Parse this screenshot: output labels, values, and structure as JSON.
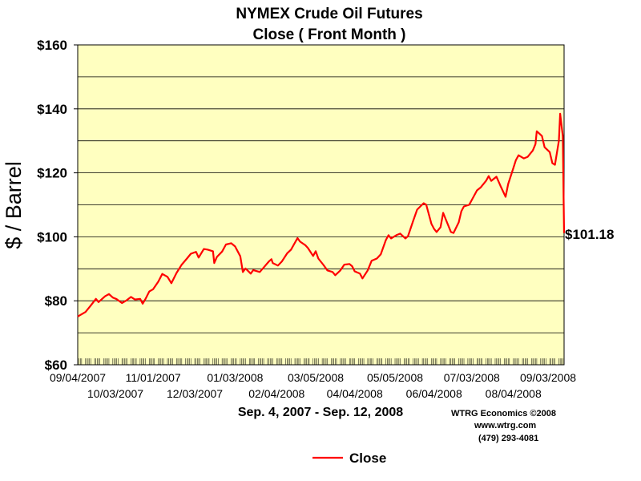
{
  "chart_data": {
    "type": "line",
    "title": "NYMEX Crude Oil Futures",
    "subtitle": "Close ( Front Month )",
    "ylabel": "$ / Barrel",
    "xlabel": "",
    "ylim": [
      60,
      160
    ],
    "ytick_labels": [
      "$60",
      "$80",
      "$100",
      "$120",
      "$140",
      "$160"
    ],
    "xtick_labels_upper": [
      "09/04/2007",
      "11/01/2007",
      "01/03/2008",
      "03/05/2008",
      "05/05/2008",
      "07/03/2008",
      "09/03/2008"
    ],
    "xtick_labels_lower": [
      "10/03/2007",
      "12/03/2007",
      "02/04/2008",
      "04/04/2008",
      "06/04/2008",
      "08/04/2008"
    ],
    "x_range": [
      "2007-09-04",
      "2008-09-12"
    ],
    "grid": "horizontal",
    "plot_background": "#ffffc0",
    "legend_position": "bottom",
    "end_value_label": "$101.18",
    "date_range_label": "Sep. 4, 2007 - Sep. 12, 2008",
    "series": [
      {
        "name": "Close",
        "color": "#ff0000",
        "points": [
          [
            "2007-09-04",
            75.1
          ],
          [
            "2007-09-10",
            76.5
          ],
          [
            "2007-09-14",
            78.5
          ],
          [
            "2007-09-18",
            80.6
          ],
          [
            "2007-09-20",
            79.6
          ],
          [
            "2007-09-25",
            81.4
          ],
          [
            "2007-09-28",
            82.1
          ],
          [
            "2007-10-01",
            81.0
          ],
          [
            "2007-10-04",
            80.5
          ],
          [
            "2007-10-08",
            79.3
          ],
          [
            "2007-10-11",
            80.0
          ],
          [
            "2007-10-15",
            81.2
          ],
          [
            "2007-10-18",
            80.4
          ],
          [
            "2007-10-22",
            80.6
          ],
          [
            "2007-10-24",
            79.1
          ],
          [
            "2007-10-26",
            80.5
          ],
          [
            "2007-10-29",
            82.9
          ],
          [
            "2007-11-01",
            83.6
          ],
          [
            "2007-11-05",
            86.0
          ],
          [
            "2007-11-08",
            88.4
          ],
          [
            "2007-11-12",
            87.5
          ],
          [
            "2007-11-15",
            85.5
          ],
          [
            "2007-11-19",
            88.7
          ],
          [
            "2007-11-23",
            91.3
          ],
          [
            "2007-11-27",
            93.2
          ],
          [
            "2007-11-30",
            94.7
          ],
          [
            "2007-12-04",
            95.3
          ],
          [
            "2007-12-06",
            93.5
          ],
          [
            "2007-12-10",
            96.2
          ],
          [
            "2007-12-13",
            96.0
          ],
          [
            "2007-12-17",
            95.5
          ],
          [
            "2007-12-18",
            91.8
          ],
          [
            "2007-12-20",
            93.7
          ],
          [
            "2007-12-24",
            95.4
          ],
          [
            "2007-12-27",
            97.6
          ],
          [
            "2007-12-31",
            98.0
          ],
          [
            "2008-01-03",
            97.0
          ],
          [
            "2008-01-07",
            93.9
          ],
          [
            "2008-01-09",
            89.0
          ],
          [
            "2008-01-11",
            90.1
          ],
          [
            "2008-01-15",
            88.5
          ],
          [
            "2008-01-17",
            89.6
          ],
          [
            "2008-01-22",
            89.0
          ],
          [
            "2008-01-25",
            90.4
          ],
          [
            "2008-01-29",
            92.3
          ],
          [
            "2008-01-31",
            93.0
          ],
          [
            "2008-02-01",
            91.8
          ],
          [
            "2008-02-05",
            91.0
          ],
          [
            "2008-02-08",
            92.3
          ],
          [
            "2008-02-12",
            94.8
          ],
          [
            "2008-02-15",
            96.0
          ],
          [
            "2008-02-20",
            99.6
          ],
          [
            "2008-02-22",
            98.5
          ],
          [
            "2008-02-26",
            97.4
          ],
          [
            "2008-02-28",
            96.5
          ],
          [
            "2008-03-03",
            94.0
          ],
          [
            "2008-03-05",
            95.5
          ],
          [
            "2008-03-07",
            93.2
          ],
          [
            "2008-03-11",
            91.2
          ],
          [
            "2008-03-14",
            89.5
          ],
          [
            "2008-03-18",
            89.0
          ],
          [
            "2008-03-20",
            88.0
          ],
          [
            "2008-03-24",
            89.5
          ],
          [
            "2008-03-27",
            91.3
          ],
          [
            "2008-03-31",
            91.5
          ],
          [
            "2008-04-02",
            90.8
          ],
          [
            "2008-04-04",
            89.2
          ],
          [
            "2008-04-08",
            88.5
          ],
          [
            "2008-04-10",
            87.0
          ],
          [
            "2008-04-14",
            89.5
          ],
          [
            "2008-04-17",
            92.5
          ],
          [
            "2008-04-21",
            93.2
          ],
          [
            "2008-04-24",
            94.5
          ],
          [
            "2008-04-28",
            99.0
          ],
          [
            "2008-04-30",
            100.5
          ],
          [
            "2008-05-02",
            99.5
          ],
          [
            "2008-05-06",
            100.5
          ],
          [
            "2008-05-09",
            101.0
          ],
          [
            "2008-05-13",
            99.5
          ],
          [
            "2008-05-15",
            100.2
          ],
          [
            "2008-05-19",
            105.0
          ],
          [
            "2008-05-22",
            108.5
          ],
          [
            "2008-05-27",
            110.5
          ],
          [
            "2008-05-29",
            110.0
          ],
          [
            "2008-06-02",
            104.0
          ],
          [
            "2008-06-04",
            102.5
          ],
          [
            "2008-06-06",
            101.5
          ],
          [
            "2008-06-09",
            103.0
          ],
          [
            "2008-06-11",
            107.5
          ],
          [
            "2008-06-13",
            105.5
          ],
          [
            "2008-06-17",
            101.5
          ],
          [
            "2008-06-19",
            101.2
          ],
          [
            "2008-06-23",
            104.5
          ],
          [
            "2008-06-25",
            108.0
          ],
          [
            "2008-06-27",
            109.5
          ],
          [
            "2008-07-01",
            110.0
          ],
          [
            "2008-07-03",
            111.5
          ],
          [
            "2008-07-07",
            114.5
          ],
          [
            "2008-07-10",
            115.5
          ],
          [
            "2008-07-14",
            117.5
          ],
          [
            "2008-07-16",
            119.0
          ],
          [
            "2008-07-18",
            117.5
          ],
          [
            "2008-07-22",
            118.8
          ],
          [
            "2008-07-25",
            116.0
          ],
          [
            "2008-07-29",
            112.5
          ],
          [
            "2008-07-31",
            116.5
          ],
          [
            "2008-08-04",
            121.5
          ],
          [
            "2008-08-06",
            124.0
          ],
          [
            "2008-08-08",
            125.5
          ],
          [
            "2008-08-12",
            124.5
          ],
          [
            "2008-08-15",
            125.0
          ],
          [
            "2008-08-19",
            127.0
          ],
          [
            "2008-08-21",
            129.0
          ],
          [
            "2008-08-22",
            133.0
          ],
          [
            "2008-08-26",
            131.5
          ],
          [
            "2008-08-28",
            128.0
          ],
          [
            "2008-09-01",
            126.5
          ],
          [
            "2008-09-03",
            123.0
          ],
          [
            "2008-09-05",
            122.5
          ],
          [
            "2008-09-08",
            130.0
          ],
          [
            "2008-09-09",
            138.5
          ],
          [
            "2008-09-11",
            131.5
          ],
          [
            "2008-09-12",
            101.18
          ]
        ]
      }
    ]
  },
  "credits": {
    "line1": "WTRG Economics  ©2008",
    "line2": "www.wtrg.com",
    "line3": "(479) 293-4081"
  },
  "legend": {
    "label": "Close"
  }
}
